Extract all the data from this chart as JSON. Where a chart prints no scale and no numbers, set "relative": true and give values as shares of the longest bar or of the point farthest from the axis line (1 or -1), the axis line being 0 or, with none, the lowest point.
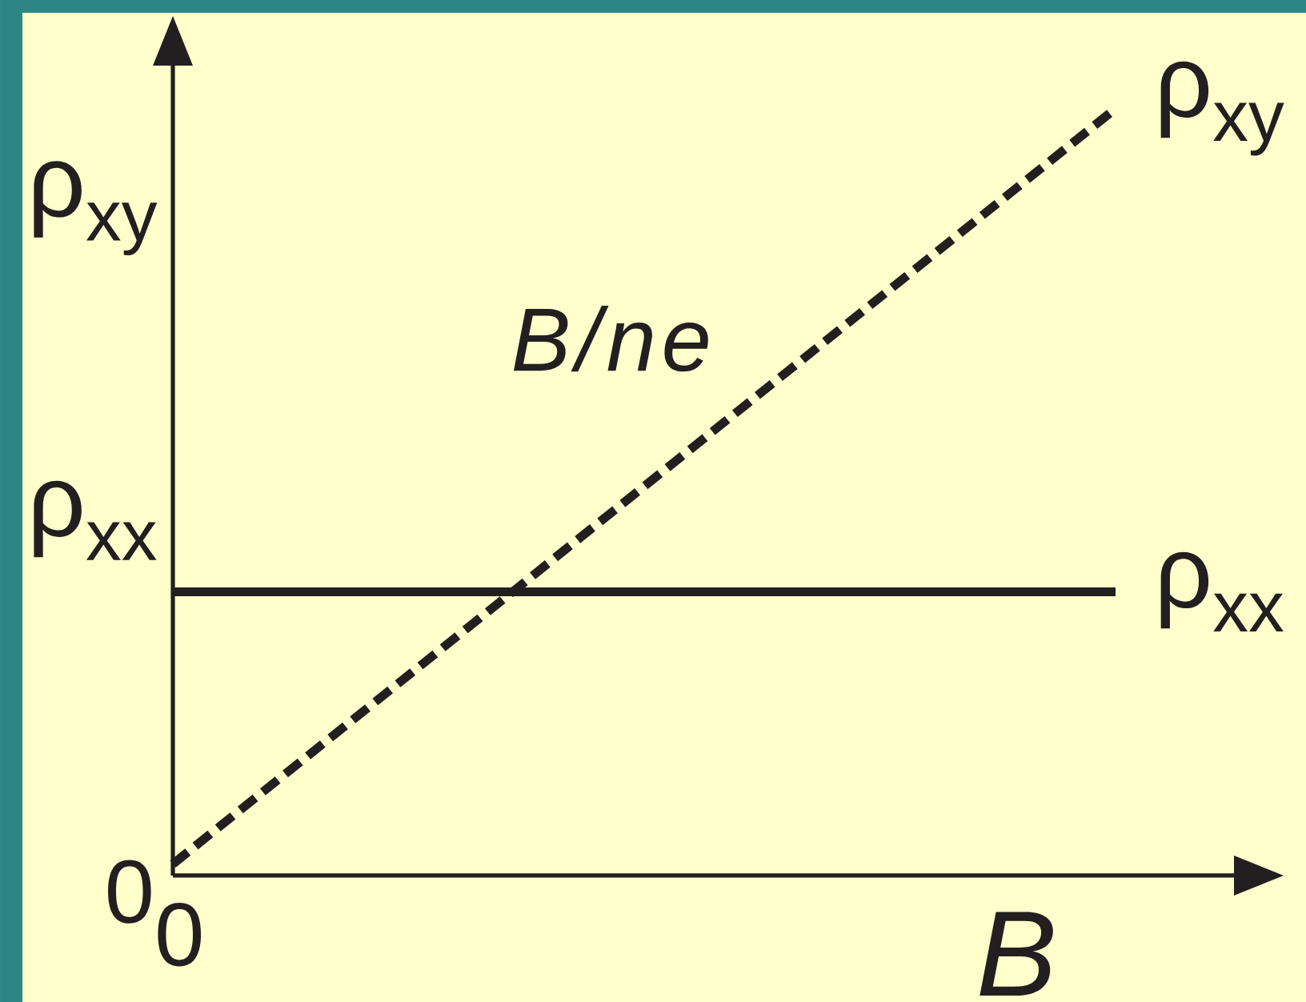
{
  "chart_data": {
    "type": "line",
    "relative": true,
    "marker": "none",
    "xlabel": "B",
    "categories": [
      null,
      null
    ],
    "series": [
      {
        "name": "ρ$_{xy}$",
        "color": "#231f20",
        "line_style": "dashed",
        "values": [
          0.015,
          1
        ]
      },
      {
        "name": "ρ$_{xx}$",
        "color": "#231f20",
        "line_style": "solid",
        "values": [
          0.37,
          0.37
        ]
      }
    ],
    "annotations": [
      "B/ne",
      "ρ$_{xy}$",
      "ρ$_{xx}$",
      "0",
      "0"
    ]
  }
}
